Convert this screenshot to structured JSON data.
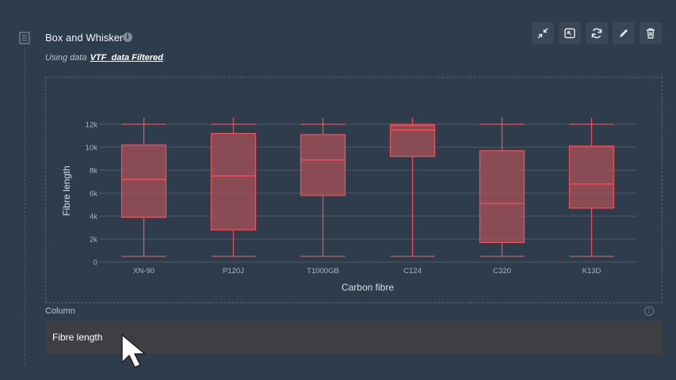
{
  "panel": {
    "title": "Box and Whisker",
    "subtitle_prefix": "Using data",
    "dataset_link": "VTF_data Filtered",
    "subtitle_suffix": "."
  },
  "toolbar": {
    "icons": [
      "minimize-icon",
      "expand-icon",
      "refresh-icon",
      "edit-icon",
      "trash-icon"
    ]
  },
  "column_field": {
    "label": "Column",
    "value": "Fibre length"
  },
  "colors": {
    "background": "#2f3c4b",
    "box_stroke": "#e8505b",
    "box_fill": "#a85057"
  },
  "chart_data": {
    "type": "box",
    "xlabel": "Carbon fibre",
    "ylabel": "Fibre length",
    "ylim": [
      0,
      13000
    ],
    "yticks": [
      0,
      2000,
      4000,
      6000,
      8000,
      10000,
      12000
    ],
    "ytick_labels": [
      "0",
      "2k",
      "4k",
      "6k",
      "8k",
      "10k",
      "12k"
    ],
    "grid": true,
    "categories": [
      "XN-90",
      "P120J",
      "T1000GB",
      "C124",
      "C320",
      "K13D"
    ],
    "boxes": [
      {
        "category": "XN-90",
        "min": 500,
        "q1": 3900,
        "median": 7200,
        "q3": 10200,
        "max": 12000
      },
      {
        "category": "P120J",
        "min": 500,
        "q1": 2800,
        "median": 7500,
        "q3": 11200,
        "max": 12000
      },
      {
        "category": "T1000GB",
        "min": 500,
        "q1": 5800,
        "median": 8900,
        "q3": 11100,
        "max": 12000
      },
      {
        "category": "C124",
        "min": 500,
        "q1": 9200,
        "median": 11500,
        "q3": 11900,
        "max": 12000
      },
      {
        "category": "C320",
        "min": 500,
        "q1": 1700,
        "median": 5100,
        "q3": 9700,
        "max": 12000
      },
      {
        "category": "K13D",
        "min": 500,
        "q1": 4700,
        "median": 6800,
        "q3": 10100,
        "max": 12000
      }
    ]
  }
}
